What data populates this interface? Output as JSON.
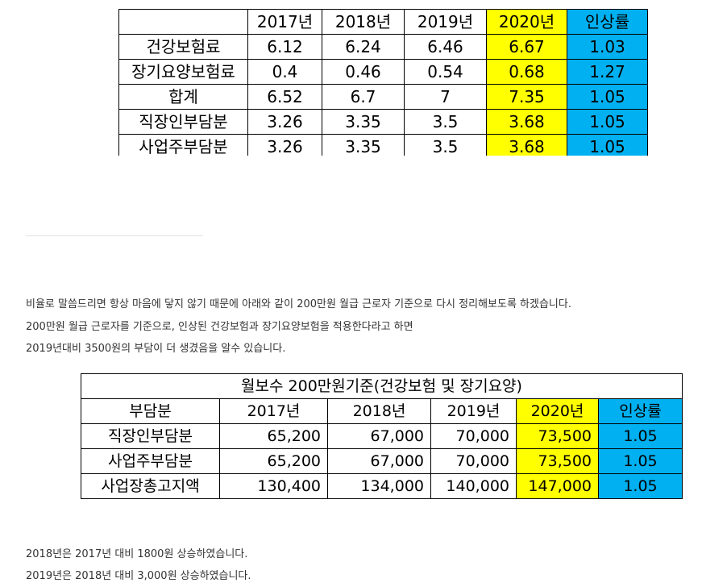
{
  "rate_table": {
    "headers": [
      "",
      "2017년",
      "2018년",
      "2019년",
      "2020년",
      "인상률"
    ],
    "rows": [
      [
        "건강보험료",
        "6.12",
        "6.24",
        "6.46",
        "6.67",
        "1.03"
      ],
      [
        "장기요양보험료",
        "0.4",
        "0.46",
        "0.54",
        "0.68",
        "1.27"
      ],
      [
        "합계",
        "6.52",
        "6.7",
        "7",
        "7.35",
        "1.05"
      ],
      [
        "직장인부담분",
        "3.26",
        "3.35",
        "3.5",
        "3.68",
        "1.05"
      ],
      [
        "사업주부담분",
        "3.26",
        "3.35",
        "3.5",
        "3.68",
        "1.05"
      ]
    ],
    "highlight_colors": {
      "yellow": "#ffff00",
      "blue": "#00b0f0"
    }
  },
  "paragraphs": [
    "비율로 말씀드리면 항상 마음에 닿지 않기 때문에 아래와 같이 200만원 월급 근로자 기준으로 다시 정리해보도록 하겠습니다.",
    "200만원 월급 근로자를 기준으로, 인상된 건강보험과 장기요양보험을 적용한다라고 하면",
    "2019년대비 3500원의 부담이 더 생겼음을 알수 있습니다."
  ],
  "pay_table": {
    "title": "월보수 200만원기준(건강보험 및 장기요양)",
    "headers": [
      "부담분",
      "2017년",
      "2018년",
      "2019년",
      "2020년",
      "인상률"
    ],
    "rows": [
      [
        "직장인부담분",
        "65,200",
        "67,000",
        "70,000",
        "73,500",
        "1.05"
      ],
      [
        "사업주부담분",
        "65,200",
        "67,000",
        "70,000",
        "73,500",
        "1.05"
      ],
      [
        "사업장총고지액",
        "130,400",
        "134,000",
        "140,000",
        "147,000",
        "1.05"
      ]
    ]
  },
  "footer_lines": [
    "2018년은 2017년 대비 1800원 상승하였습니다.",
    "2019년은 2018년 대비 3,000원 상승하였습니다."
  ]
}
